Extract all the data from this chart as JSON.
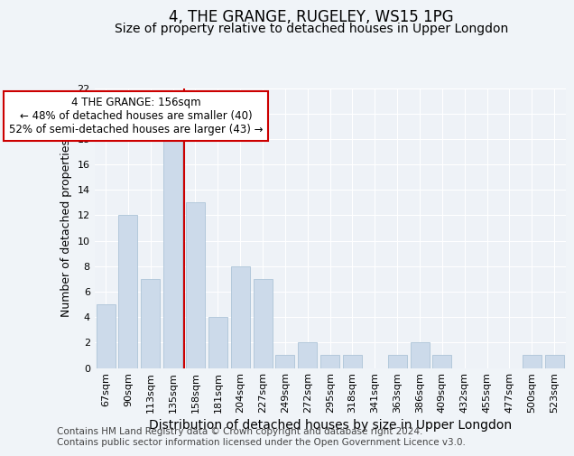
{
  "title": "4, THE GRANGE, RUGELEY, WS15 1PG",
  "subtitle": "Size of property relative to detached houses in Upper Longdon",
  "xlabel": "Distribution of detached houses by size in Upper Longdon",
  "ylabel": "Number of detached properties",
  "categories": [
    "67sqm",
    "90sqm",
    "113sqm",
    "135sqm",
    "158sqm",
    "181sqm",
    "204sqm",
    "227sqm",
    "249sqm",
    "272sqm",
    "295sqm",
    "318sqm",
    "341sqm",
    "363sqm",
    "386sqm",
    "409sqm",
    "432sqm",
    "455sqm",
    "477sqm",
    "500sqm",
    "523sqm"
  ],
  "values": [
    5,
    12,
    7,
    19,
    13,
    4,
    8,
    7,
    1,
    2,
    1,
    1,
    0,
    1,
    2,
    1,
    0,
    0,
    0,
    1,
    1
  ],
  "bar_color": "#ccdaea",
  "bar_edge_color": "#adc4d8",
  "vline_color": "#cc0000",
  "vline_index": 4,
  "annotation_text": "4 THE GRANGE: 156sqm\n← 48% of detached houses are smaller (40)\n52% of semi-detached houses are larger (43) →",
  "annotation_box_color": "#ffffff",
  "annotation_box_edge": "#cc0000",
  "ylim": [
    0,
    22
  ],
  "yticks": [
    0,
    2,
    4,
    6,
    8,
    10,
    12,
    14,
    16,
    18,
    20,
    22
  ],
  "bg_color": "#f0f4f8",
  "plot_bg_color": "#eef2f7",
  "footer_line1": "Contains HM Land Registry data © Crown copyright and database right 2024.",
  "footer_line2": "Contains public sector information licensed under the Open Government Licence v3.0.",
  "title_fontsize": 12,
  "subtitle_fontsize": 10,
  "xlabel_fontsize": 10,
  "ylabel_fontsize": 9,
  "tick_fontsize": 8,
  "annotation_fontsize": 8.5,
  "footer_fontsize": 7.5
}
